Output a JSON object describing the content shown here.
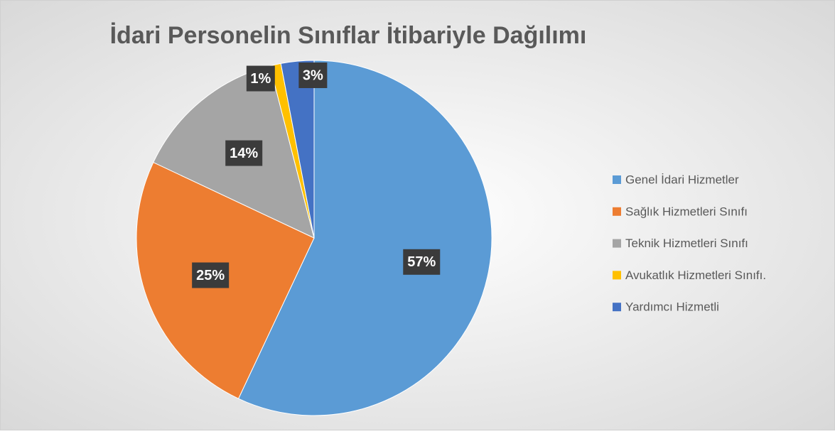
{
  "chart_data": {
    "type": "pie",
    "title": "İdari Personelin Sınıflar İtibariyle Dağılımı",
    "categories": [
      "Genel İdari Hizmetler",
      "Sağlık Hizmetleri Sınıfı",
      "Teknik Hizmetleri Sınıfı",
      "Avukatlık Hizmetleri Sınıfı.",
      "Yardımcı Hizmetli"
    ],
    "values": [
      57,
      25,
      14,
      1,
      3
    ],
    "value_labels": [
      "57%",
      "25%",
      "14%",
      "1%",
      "3%"
    ],
    "colors": [
      "#5b9bd5",
      "#ed7d31",
      "#a5a5a5",
      "#ffc000",
      "#4472c4"
    ],
    "legend": "right"
  }
}
